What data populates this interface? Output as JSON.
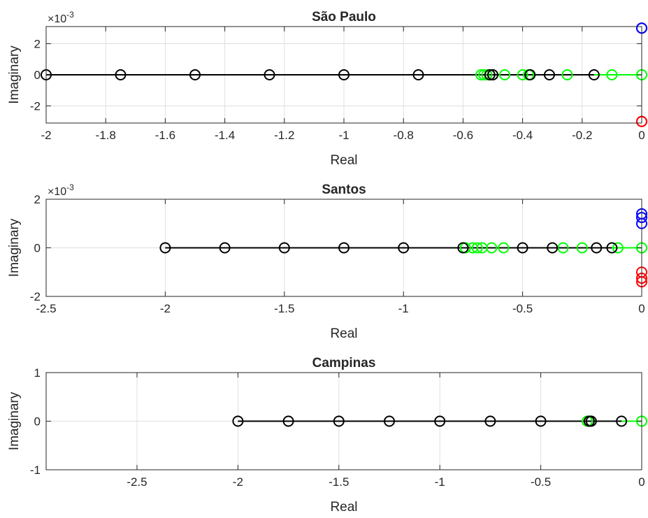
{
  "chart_data": [
    {
      "type": "scatter",
      "title": "São Paulo",
      "xlabel": "Real",
      "ylabel": "Imaginary",
      "y_exponent": "-3",
      "xlim": [
        -2,
        0
      ],
      "ylim": [
        -3.1,
        3.1
      ],
      "xticks": [
        -2,
        -1.8,
        -1.6,
        -1.4,
        -1.2,
        -1,
        -0.8,
        -0.6,
        -0.4,
        -0.2,
        0
      ],
      "xtick_labels": [
        "-2",
        "-1.8",
        "-1.6",
        "-1.4",
        "-1.2",
        "-1",
        "-0.8",
        "-0.6",
        "-0.4",
        "-0.2",
        "0"
      ],
      "yticks": [
        -2,
        0,
        2
      ],
      "ytick_labels": [
        "-2",
        "0",
        "2"
      ],
      "grid": true,
      "series": [
        {
          "color": "#00ff00",
          "line": {
            "x": [
              -0.54,
              0
            ],
            "y": [
              0,
              0
            ]
          },
          "x": [
            -0.54,
            -0.53,
            -0.52,
            -0.5,
            -0.46,
            -0.4,
            -0.38,
            -0.25,
            -0.1,
            0
          ],
          "y": [
            0,
            0,
            0,
            0,
            0,
            0,
            0,
            0,
            0,
            0
          ]
        },
        {
          "color": "#000000",
          "line": {
            "x": [
              -2,
              -0.16
            ],
            "y": [
              0,
              0
            ]
          },
          "x": [
            -2,
            -1.75,
            -1.5,
            -1.25,
            -1,
            -0.75,
            -0.51,
            -0.5,
            -0.375,
            -0.31,
            -0.16
          ],
          "y": [
            0,
            0,
            0,
            0,
            0,
            0,
            0,
            0,
            0,
            0,
            0
          ]
        },
        {
          "color": "#0000ff",
          "x": [
            0,
            0
          ],
          "y": [
            3,
            3
          ]
        },
        {
          "color": "#ff0000",
          "x": [
            0,
            0
          ],
          "y": [
            -3,
            -3
          ]
        }
      ]
    },
    {
      "type": "scatter",
      "title": "Santos",
      "xlabel": "Real",
      "ylabel": "Imaginary",
      "y_exponent": "-3",
      "xlim": [
        -2.5,
        0
      ],
      "ylim": [
        -2,
        2
      ],
      "xticks": [
        -2.5,
        -2,
        -1.5,
        -1,
        -0.5,
        0
      ],
      "xtick_labels": [
        "-2.5",
        "-2",
        "-1.5",
        "-1",
        "-0.5",
        "0"
      ],
      "yticks": [
        -2,
        0,
        2
      ],
      "ytick_labels": [
        "-2",
        "0",
        "2"
      ],
      "grid": true,
      "series": [
        {
          "color": "#00ff00",
          "line": {
            "x": [
              -0.75,
              0
            ],
            "y": [
              0,
              0
            ]
          },
          "x": [
            -0.74,
            -0.71,
            -0.69,
            -0.67,
            -0.63,
            -0.58,
            -0.33,
            -0.25,
            -0.1,
            0
          ],
          "y": [
            0,
            0,
            0,
            0,
            0,
            0,
            0,
            0,
            0,
            0
          ]
        },
        {
          "color": "#000000",
          "line": {
            "x": [
              -2,
              -0.125
            ],
            "y": [
              0,
              0
            ]
          },
          "x": [
            -2,
            -1.75,
            -1.5,
            -1.25,
            -1,
            -0.75,
            -0.5,
            -0.375,
            -0.19,
            -0.125
          ],
          "y": [
            0,
            0,
            0,
            0,
            0,
            0,
            0,
            0,
            0,
            0
          ]
        },
        {
          "color": "#0000ff",
          "x": [
            0,
            0,
            0
          ],
          "y": [
            1.4,
            1.25,
            1.0
          ]
        },
        {
          "color": "#ff0000",
          "x": [
            0,
            0,
            0
          ],
          "y": [
            -1.0,
            -1.25,
            -1.4
          ]
        }
      ]
    },
    {
      "type": "scatter",
      "title": "Campinas",
      "xlabel": "Real",
      "ylabel": "Imaginary",
      "y_exponent": "",
      "xlim": [
        -2.95,
        0
      ],
      "ylim": [
        -1,
        1
      ],
      "xticks": [
        -2.5,
        -2,
        -1.5,
        -1,
        -0.5,
        0
      ],
      "xtick_labels": [
        "-2.5",
        "-2",
        "-1.5",
        "-1",
        "-0.5",
        "0"
      ],
      "yticks": [
        -1,
        0,
        1
      ],
      "ytick_labels": [
        "-1",
        "0",
        "1"
      ],
      "grid": true,
      "series": [
        {
          "color": "#00ff00",
          "line": {
            "x": [
              -0.27,
              0
            ],
            "y": [
              0,
              0
            ]
          },
          "x": [
            -0.27,
            -0.26,
            0
          ],
          "y": [
            0,
            0,
            0
          ]
        },
        {
          "color": "#000000",
          "line": {
            "x": [
              -2,
              -0.1
            ],
            "y": [
              0,
              0
            ]
          },
          "x": [
            -2,
            -1.75,
            -1.5,
            -1.25,
            -1,
            -0.75,
            -0.5,
            -0.26,
            -0.25,
            -0.1
          ],
          "y": [
            0,
            0,
            0,
            0,
            0,
            0,
            0,
            0,
            0,
            0
          ]
        }
      ]
    }
  ]
}
